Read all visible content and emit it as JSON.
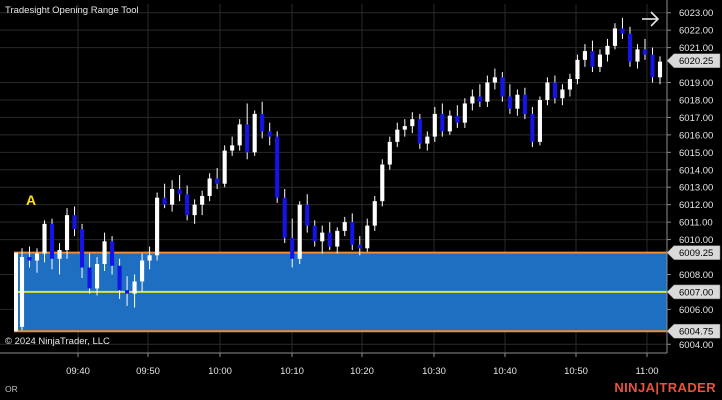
{
  "window": {
    "title": "Tradesight Opening Range Tool",
    "copyright": "© 2024 NinjaTrader, LLC"
  },
  "marker": {
    "label": "A",
    "color": "#ffe11a"
  },
  "footer": {
    "left_text": "OR",
    "brand_part1": "NINJA",
    "brand_sep": "|",
    "brand_part2": "TRADER",
    "brand_color": "#e8533d"
  },
  "colors": {
    "background": "#000000",
    "grid": "#2a2a2a",
    "range_fill": "#1e6ec2",
    "range_border": "#f28b32",
    "mid_line": "#d8e63c",
    "up_candle": "#ffffff",
    "down_candle": "#1414e6",
    "axis_text": "#e6e6e6",
    "tag_bg": "#d9d9d9",
    "tag_text": "#000000"
  },
  "chart_data": {
    "type": "candlestick",
    "xlabel": "",
    "ylabel": "",
    "ylim": [
      6003.5,
      6023.5
    ],
    "y_ticks": [
      "6023.00",
      "6022.00",
      "6021.00",
      "6019.00",
      "6018.00",
      "6017.00",
      "6016.00",
      "6015.00",
      "6014.00",
      "6013.00",
      "6012.00",
      "6011.00",
      "6010.00",
      "6008.00",
      "6006.00",
      "6004.00"
    ],
    "x_ticks": [
      "09:40",
      "09:50",
      "10:00",
      "10:10",
      "10:20",
      "10:30",
      "10:40",
      "10:50",
      "11:00"
    ],
    "opening_range": {
      "high": 6009.25,
      "mid": 6007.0,
      "low": 6004.75
    },
    "price_tags": [
      {
        "label": "6020.25",
        "value": 6020.25
      },
      {
        "label": "6009.25",
        "value": 6009.25
      },
      {
        "label": "6007.00",
        "value": 6007.0
      },
      {
        "label": "6004.75",
        "value": 6004.75
      }
    ],
    "candles": [
      [
        6005.0,
        6009.5,
        6004.8,
        6009.0
      ],
      [
        6009.0,
        6009.6,
        6008.4,
        6008.8
      ],
      [
        6008.8,
        6009.5,
        6008.1,
        6009.2
      ],
      [
        6009.2,
        6011.1,
        6008.7,
        6010.9
      ],
      [
        6010.9,
        6011.2,
        6008.3,
        6008.9
      ],
      [
        6008.9,
        6009.8,
        6008.0,
        6009.4
      ],
      [
        6009.4,
        6011.8,
        6008.9,
        6011.4
      ],
      [
        6011.4,
        6011.9,
        6010.2,
        6010.6
      ],
      [
        6010.6,
        6010.9,
        6007.8,
        6008.4
      ],
      [
        6008.4,
        6009.2,
        6006.9,
        6007.2
      ],
      [
        6007.2,
        6009.0,
        6006.8,
        6008.6
      ],
      [
        6008.6,
        6010.4,
        6008.2,
        6009.9
      ],
      [
        6009.9,
        6010.2,
        6008.0,
        6008.5
      ],
      [
        6008.5,
        6008.9,
        6006.6,
        6007.1
      ],
      [
        6007.1,
        6007.9,
        6006.2,
        6006.9
      ],
      [
        6006.9,
        6008.0,
        6006.1,
        6007.6
      ],
      [
        6007.6,
        6009.2,
        6007.0,
        6008.8
      ],
      [
        6008.8,
        6009.6,
        6008.3,
        6009.1
      ],
      [
        6009.1,
        6012.7,
        6008.8,
        6012.4
      ],
      [
        6012.4,
        6013.2,
        6011.8,
        6012.0
      ],
      [
        6012.0,
        6013.4,
        6011.6,
        6012.9
      ],
      [
        6012.9,
        6013.7,
        6012.2,
        6012.6
      ],
      [
        6012.6,
        6013.1,
        6011.1,
        6011.4
      ],
      [
        6011.4,
        6012.3,
        6010.9,
        6012.0
      ],
      [
        6012.0,
        6012.8,
        6011.4,
        6012.5
      ],
      [
        6012.5,
        6013.8,
        6012.2,
        6013.5
      ],
      [
        6013.5,
        6014.1,
        6012.9,
        6013.2
      ],
      [
        6013.2,
        6015.4,
        6013.0,
        6015.1
      ],
      [
        6015.1,
        6015.9,
        6014.8,
        6015.4
      ],
      [
        6015.4,
        6016.9,
        6015.1,
        6016.6
      ],
      [
        6016.6,
        6017.8,
        6014.6,
        6015.0
      ],
      [
        6015.0,
        6017.4,
        6014.8,
        6017.2
      ],
      [
        6017.2,
        6017.9,
        6015.8,
        6016.2
      ],
      [
        6016.2,
        6016.7,
        6015.4,
        6015.9
      ],
      [
        6015.9,
        6016.2,
        6012.1,
        6012.4
      ],
      [
        6012.4,
        6012.9,
        6009.8,
        6010.1
      ],
      [
        6010.1,
        6011.2,
        6008.4,
        6008.9
      ],
      [
        6008.9,
        6012.2,
        6008.6,
        6012.0
      ],
      [
        6012.0,
        6012.6,
        6010.4,
        6010.8
      ],
      [
        6010.8,
        6011.1,
        6009.6,
        6009.9
      ],
      [
        6009.9,
        6010.8,
        6009.2,
        6010.4
      ],
      [
        6010.4,
        6011.0,
        6009.4,
        6009.6
      ],
      [
        6009.6,
        6010.7,
        6009.2,
        6010.5
      ],
      [
        6010.5,
        6011.3,
        6010.2,
        6011.0
      ],
      [
        6011.0,
        6011.5,
        6009.4,
        6009.7
      ],
      [
        6009.7,
        6010.2,
        6009.1,
        6009.5
      ],
      [
        6009.5,
        6011.2,
        6009.3,
        6010.8
      ],
      [
        6010.8,
        6012.5,
        6010.5,
        6012.2
      ],
      [
        6012.2,
        6014.6,
        6011.9,
        6014.3
      ],
      [
        6014.3,
        6015.9,
        6014.0,
        6015.6
      ],
      [
        6015.6,
        6016.7,
        6015.3,
        6016.3
      ],
      [
        6016.3,
        6016.9,
        6015.9,
        6016.5
      ],
      [
        6016.5,
        6017.3,
        6016.1,
        6016.9
      ],
      [
        6016.9,
        6017.2,
        6015.2,
        6015.5
      ],
      [
        6015.5,
        6016.2,
        6015.1,
        6015.9
      ],
      [
        6015.9,
        6017.6,
        6015.6,
        6017.2
      ],
      [
        6017.2,
        6017.8,
        6015.9,
        6016.2
      ],
      [
        6016.2,
        6017.4,
        6016.0,
        6017.1
      ],
      [
        6017.1,
        6017.7,
        6016.4,
        6016.7
      ],
      [
        6016.7,
        6018.1,
        6016.4,
        6017.8
      ],
      [
        6017.8,
        6018.6,
        6017.4,
        6018.2
      ],
      [
        6018.2,
        6018.9,
        6017.6,
        6017.9
      ],
      [
        6017.9,
        6019.4,
        6017.6,
        6019.0
      ],
      [
        6019.0,
        6019.8,
        6018.6,
        6019.3
      ],
      [
        6019.3,
        6019.6,
        6017.9,
        6018.2
      ],
      [
        6018.2,
        6018.9,
        6017.2,
        6017.5
      ],
      [
        6017.5,
        6018.6,
        6017.1,
        6018.3
      ],
      [
        6018.3,
        6018.7,
        6016.9,
        6017.2
      ],
      [
        6017.2,
        6017.6,
        6015.3,
        6015.6
      ],
      [
        6015.6,
        6018.2,
        6015.4,
        6018.0
      ],
      [
        6018.0,
        6019.3,
        6017.7,
        6019.0
      ],
      [
        6019.0,
        6019.4,
        6017.8,
        6018.1
      ],
      [
        6018.1,
        6018.9,
        6017.7,
        6018.6
      ],
      [
        6018.6,
        6019.5,
        6018.2,
        6019.2
      ],
      [
        6019.2,
        6020.6,
        6018.9,
        6020.3
      ],
      [
        6020.3,
        6021.2,
        6019.9,
        6020.8
      ],
      [
        6020.8,
        6021.4,
        6019.6,
        6019.9
      ],
      [
        6019.9,
        6020.9,
        6019.6,
        6020.6
      ],
      [
        6020.6,
        6021.5,
        6020.2,
        6021.1
      ],
      [
        6021.1,
        6022.4,
        6020.9,
        6022.1
      ],
      [
        6022.1,
        6022.7,
        6021.5,
        6021.8
      ],
      [
        6021.8,
        6022.2,
        6019.9,
        6020.2
      ],
      [
        6020.2,
        6021.2,
        6019.8,
        6020.9
      ],
      [
        6020.9,
        6021.5,
        6020.3,
        6020.6
      ],
      [
        6020.6,
        6021.0,
        6019.0,
        6019.3
      ],
      [
        6019.3,
        6020.5,
        6018.9,
        6020.2
      ]
    ]
  }
}
